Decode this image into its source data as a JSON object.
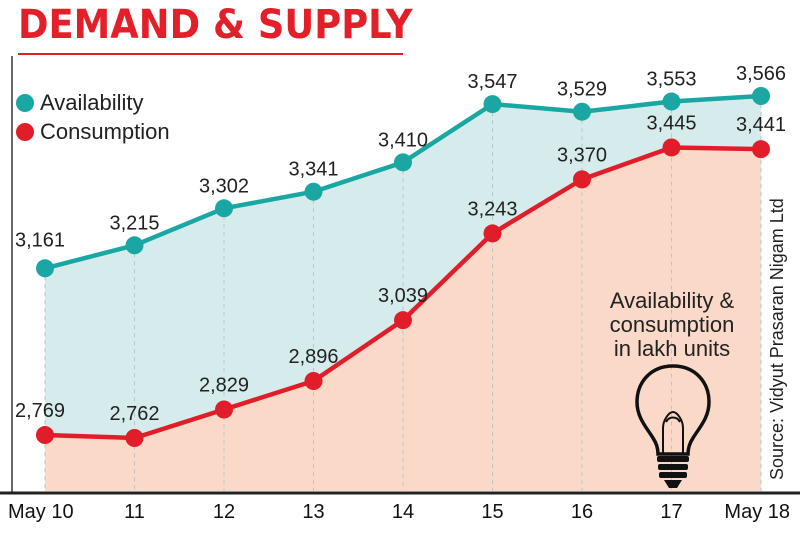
{
  "title": "DEMAND & SUPPLY",
  "note": [
    "Availability &",
    "consumption",
    "in lakh units"
  ],
  "source": "Source: Vidyut Prasaran Nigam Ltd",
  "colors": {
    "title": "#e3202a",
    "availability": "#1aa7a3",
    "consumption": "#e11d2a",
    "fill_availability": "#d6ecec",
    "fill_consumption": "#fbd9c8",
    "grid": "#b7c7c7"
  },
  "icons": {
    "bulb": "light-bulb-icon"
  },
  "chart_data": {
    "type": "line",
    "categories": [
      "May 10",
      "11",
      "12",
      "13",
      "14",
      "15",
      "16",
      "17",
      "May 18"
    ],
    "series": [
      {
        "name": "Availability",
        "values": [
          3161,
          3215,
          3302,
          3341,
          3410,
          3547,
          3529,
          3553,
          3566
        ]
      },
      {
        "name": "Consumption",
        "values": [
          2769,
          2762,
          2829,
          2896,
          3039,
          3243,
          3370,
          3445,
          3441
        ]
      }
    ],
    "data_labels": {
      "Availability": [
        "3,161",
        "3,215",
        "3,302",
        "3,341",
        "3,410",
        "3,547",
        "3,529",
        "3,553",
        "3,566"
      ],
      "Consumption": [
        "2,769",
        "2,762",
        "2,829",
        "2,896",
        "3,039",
        "3,243",
        "3,370",
        "3,445",
        "3,441"
      ]
    },
    "area_fill": true,
    "grid": true,
    "legend_position": "top-left"
  }
}
